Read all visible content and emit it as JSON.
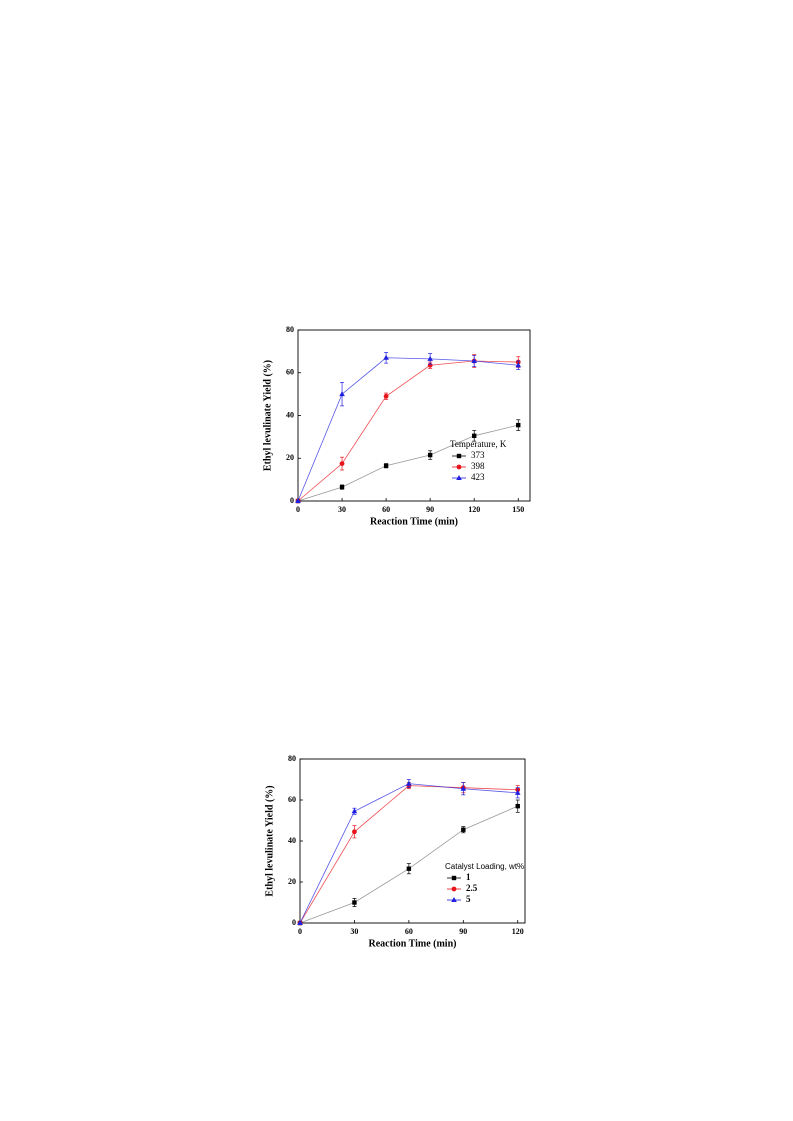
{
  "chart_data": [
    {
      "type": "line",
      "x_label": "Reaction Time (min)",
      "y_label": "Ethyl levulinate Yield (%)",
      "x": [
        0,
        30,
        60,
        90,
        120,
        150
      ],
      "xlim": [
        0,
        158
      ],
      "xticks": [
        0,
        30,
        60,
        90,
        120,
        150
      ],
      "ylim": [
        0,
        80
      ],
      "yticks": [
        0,
        20,
        40,
        60,
        80
      ],
      "grid": false,
      "legend": "lower right",
      "legend_title": "Temperature, K",
      "series": [
        {
          "name": "373",
          "color": "#000000",
          "marker": "square",
          "values": [
            0,
            6.5,
            16.5,
            21.5,
            30.5,
            35.5
          ],
          "errors": [
            0,
            1,
            1,
            2,
            2.5,
            2.5
          ]
        },
        {
          "name": "398",
          "color": "#e8141b",
          "marker": "circle",
          "values": [
            0,
            17.5,
            49,
            63.5,
            65.5,
            65
          ],
          "errors": [
            0,
            3,
            1.5,
            1.5,
            3,
            2.5
          ]
        },
        {
          "name": "423",
          "color": "#1f1fe0",
          "marker": "triangle",
          "values": [
            0,
            50,
            67,
            66.5,
            65.5,
            63.5
          ],
          "errors": [
            0,
            5.5,
            2.5,
            2.5,
            2.5,
            2
          ]
        }
      ]
    },
    {
      "type": "line",
      "x_label": "Reaction Time (min)",
      "y_label": "Ethyl levulinate Yield (%)",
      "x": [
        0,
        30,
        60,
        90,
        120
      ],
      "xlim": [
        0,
        124
      ],
      "xticks": [
        0,
        30,
        60,
        90,
        120
      ],
      "ylim": [
        0,
        80
      ],
      "yticks": [
        0,
        20,
        40,
        60,
        80
      ],
      "grid": false,
      "legend": "lower right",
      "legend_title": "Catalyst Loading, wt%",
      "series": [
        {
          "name": "1",
          "color": "#000000",
          "marker": "square",
          "values": [
            0,
            10,
            26.5,
            45.5,
            57
          ],
          "errors": [
            0,
            2,
            2.5,
            1.5,
            3
          ]
        },
        {
          "name": "2.5",
          "color": "#e8141b",
          "marker": "circle",
          "values": [
            0,
            44.5,
            67,
            66,
            65
          ],
          "errors": [
            0,
            3,
            1.5,
            2.5,
            2
          ]
        },
        {
          "name": "5",
          "color": "#1f1fe0",
          "marker": "triangle",
          "values": [
            0,
            54.5,
            68,
            65.5,
            63.5
          ],
          "errors": [
            0,
            1.5,
            2,
            3,
            2.5
          ]
        }
      ]
    }
  ]
}
